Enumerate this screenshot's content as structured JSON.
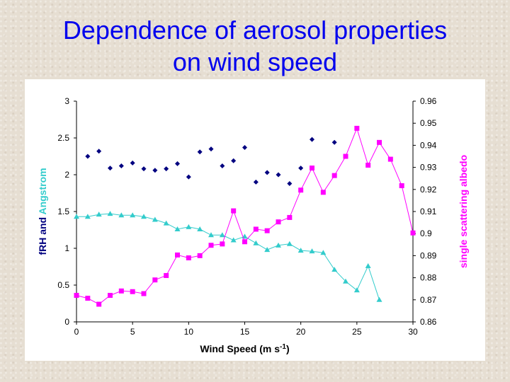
{
  "slide": {
    "title_line1": "Dependence of aerosol properties",
    "title_line2": "on wind speed"
  },
  "chart_data": {
    "type": "scatter",
    "xlabel": "Wind Speed (m s",
    "xlabel_sup": "-1",
    "xlabel_end": ")",
    "ylabel_left": [
      {
        "text": "fRH",
        "color": "#000080"
      },
      {
        "text": " and ",
        "color": "#000080"
      },
      {
        "text": "Angstrom",
        "color": "#33cccc"
      }
    ],
    "ylabel_right": "single scattering albedo",
    "ylabel_right_color": "#ff00ff",
    "xlim": [
      0,
      30
    ],
    "ylim_left": [
      0,
      3
    ],
    "ylim_right": [
      0.86,
      0.96
    ],
    "x_ticks": [
      0,
      5,
      10,
      15,
      20,
      25,
      30
    ],
    "x_tick_labels": [
      "0",
      "5",
      "10",
      "15",
      "20",
      "25",
      "30"
    ],
    "y_left_ticks": [
      0,
      0.5,
      1,
      1.5,
      2,
      2.5,
      3
    ],
    "y_left_tick_labels": [
      "0",
      "0.5",
      "1",
      "1.5",
      "2",
      "2.5",
      "3"
    ],
    "y_right_ticks": [
      0.86,
      0.87,
      0.88,
      0.89,
      0.9,
      0.91,
      0.92,
      0.93,
      0.94,
      0.95,
      0.96
    ],
    "y_right_tick_labels": [
      "0.86",
      "0.87",
      "0.88",
      "0.89",
      "0.9",
      "0.91",
      "0.92",
      "0.93",
      "0.94",
      "0.95",
      "0.96"
    ],
    "grid": false,
    "legend": "none",
    "series": [
      {
        "key": "frh",
        "axis": "left",
        "marker": "diamond",
        "color": "#000080",
        "line": false,
        "x": [
          1,
          2,
          3,
          4,
          5,
          6,
          7,
          8,
          9,
          10,
          11,
          12,
          13,
          14,
          15,
          16,
          17,
          18,
          19,
          20,
          21,
          23
        ],
        "y": [
          2.25,
          2.32,
          2.09,
          2.12,
          2.16,
          2.08,
          2.06,
          2.08,
          2.15,
          1.97,
          2.31,
          2.35,
          2.12,
          2.19,
          2.37,
          1.9,
          2.03,
          2.0,
          1.88,
          2.09,
          2.48,
          2.44
        ]
      },
      {
        "key": "angstrom",
        "axis": "left",
        "marker": "triangle",
        "color": "#33cccc",
        "line": true,
        "x": [
          0,
          1,
          2,
          3,
          4,
          5,
          6,
          7,
          8,
          9,
          10,
          11,
          12,
          13,
          14,
          15,
          16,
          17,
          18,
          19,
          20,
          21,
          22,
          23,
          24,
          25,
          26,
          27
        ],
        "y": [
          1.43,
          1.43,
          1.46,
          1.47,
          1.45,
          1.45,
          1.43,
          1.39,
          1.34,
          1.26,
          1.29,
          1.26,
          1.18,
          1.18,
          1.11,
          1.16,
          1.07,
          0.98,
          1.04,
          1.06,
          0.97,
          0.96,
          0.94,
          0.71,
          0.55,
          0.43,
          0.76,
          0.3
        ]
      },
      {
        "key": "ssa",
        "axis": "right",
        "marker": "square",
        "color": "#ff00ff",
        "line": true,
        "x": [
          0,
          1,
          2,
          3,
          4,
          5,
          6,
          7,
          8,
          9,
          10,
          11,
          12,
          13,
          14,
          15,
          16,
          17,
          18,
          19,
          20,
          21,
          22,
          23,
          24,
          25,
          26,
          27,
          28,
          29,
          30
        ],
        "y": [
          0.872,
          0.8707,
          0.868,
          0.872,
          0.874,
          0.8737,
          0.8728,
          0.879,
          0.881,
          0.8903,
          0.889,
          0.89,
          0.8947,
          0.8953,
          0.9103,
          0.8963,
          0.902,
          0.9013,
          0.9053,
          0.9073,
          0.9197,
          0.9297,
          0.9187,
          0.9263,
          0.935,
          0.9477,
          0.931,
          0.9413,
          0.9337,
          0.9217,
          0.9003
        ]
      }
    ]
  }
}
